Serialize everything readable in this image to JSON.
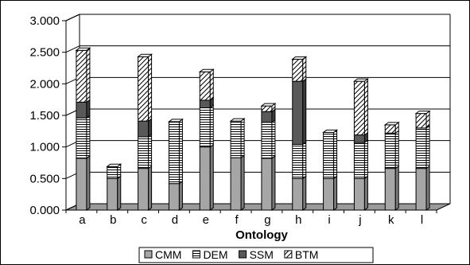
{
  "chart_data": {
    "type": "bar",
    "stacked": true,
    "categories": [
      "a",
      "b",
      "c",
      "d",
      "e",
      "f",
      "g",
      "h",
      "i",
      "j",
      "k",
      "l"
    ],
    "series": [
      {
        "name": "CMM",
        "values": [
          0.82,
          0.5,
          0.66,
          0.42,
          1.0,
          0.83,
          0.82,
          0.5,
          0.5,
          0.5,
          0.66,
          0.66
        ]
      },
      {
        "name": "DEM",
        "values": [
          0.64,
          0.19,
          0.5,
          0.98,
          0.62,
          0.58,
          0.57,
          0.54,
          0.73,
          0.57,
          0.56,
          0.64
        ]
      },
      {
        "name": "SSM",
        "values": [
          0.25,
          0.0,
          0.25,
          0.0,
          0.12,
          0.0,
          0.17,
          1.0,
          0.0,
          0.12,
          0.0,
          0.0
        ]
      },
      {
        "name": "BTM",
        "values": [
          0.82,
          0.0,
          1.02,
          0.0,
          0.45,
          0.0,
          0.09,
          0.35,
          0.0,
          0.85,
          0.13,
          0.23
        ]
      }
    ],
    "xlabel": "Ontology",
    "ylabel": "",
    "ylim": [
      0,
      3
    ],
    "yticks": [
      "0.000",
      "0.500",
      "1.000",
      "1.500",
      "2.000",
      "2.500",
      "3.000"
    ],
    "grid": true,
    "legend": "bottom",
    "colors": {
      "CMM": "#a6a6a6",
      "DEM": "#ffffff",
      "SSM": "#595959",
      "BTM": "#ffffff"
    }
  }
}
